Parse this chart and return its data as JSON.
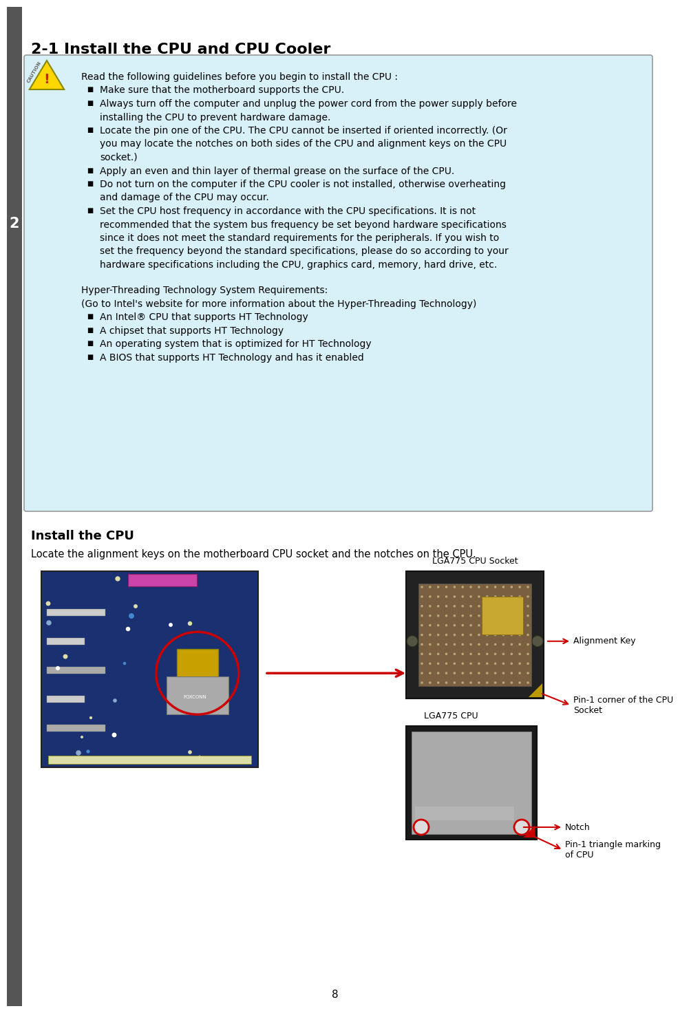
{
  "title": "2-1 Install the CPU and CPU Cooler",
  "page_number": "8",
  "bg_color": "#ffffff",
  "left_bar_color": "#555555",
  "left_bar_number": "2",
  "caution_box_bg": "#d8f0f8",
  "caution_box_border": "#999999",
  "section_title": "Install the CPU",
  "section_subtitle": "Locate the alignment keys on the motherboard CPU socket and the notches on the CPU.",
  "label_lga775_socket": "LGA775 CPU Socket",
  "label_lga775_cpu": "LGA775 CPU",
  "label_alignment_key": "Alignment Key",
  "label_pin1_socket": "Pin-1 corner of the CPU\nSocket",
  "label_notch": "Notch",
  "label_pin1_cpu": "Pin-1 triangle marking\nof CPU",
  "arrow_color": "#cc0000",
  "text_color": "#000000",
  "caution_lines": [
    {
      "indent": 0,
      "bullet": false,
      "text": "Read the following guidelines before you begin to install the CPU :"
    },
    {
      "indent": 1,
      "bullet": true,
      "text": "Make sure that the motherboard supports the CPU."
    },
    {
      "indent": 1,
      "bullet": true,
      "text": "Always turn off the computer and unplug the power cord from the power supply before"
    },
    {
      "indent": 2,
      "bullet": false,
      "text": "installing the CPU to prevent hardware damage."
    },
    {
      "indent": 1,
      "bullet": true,
      "text": "Locate the pin one of the CPU. The CPU cannot be inserted if oriented incorrectly. (Or"
    },
    {
      "indent": 2,
      "bullet": false,
      "text": "you may locate the notches on both sides of the CPU and alignment keys on the CPU"
    },
    {
      "indent": 2,
      "bullet": false,
      "text": "socket.)"
    },
    {
      "indent": 1,
      "bullet": true,
      "text": "Apply an even and thin layer of thermal grease on the surface of the CPU."
    },
    {
      "indent": 1,
      "bullet": true,
      "text": "Do not turn on the computer if the CPU cooler is not installed, otherwise overheating"
    },
    {
      "indent": 2,
      "bullet": false,
      "text": "and damage of the CPU may occur."
    },
    {
      "indent": 1,
      "bullet": true,
      "text": "Set the CPU host frequency in accordance with the CPU specifications. It is not"
    },
    {
      "indent": 2,
      "bullet": false,
      "text": "recommended that the system bus frequency be set beyond hardware specifications"
    },
    {
      "indent": 2,
      "bullet": false,
      "text": "since it does not meet the standard requirements for the peripherals. If you wish to"
    },
    {
      "indent": 2,
      "bullet": false,
      "text": "set the frequency beyond the standard specifications, please do so according to your"
    },
    {
      "indent": 2,
      "bullet": false,
      "text": "hardware specifications including the CPU, graphics card, memory, hard drive, etc."
    },
    {
      "indent": 0,
      "bullet": false,
      "text": ""
    },
    {
      "indent": 0,
      "bullet": false,
      "text": "Hyper-Threading Technology System Requirements:"
    },
    {
      "indent": 0,
      "bullet": false,
      "text": "(Go to Intel's website for more information about the Hyper-Threading Technology)"
    },
    {
      "indent": 1,
      "bullet": true,
      "text": "An Intel® CPU that supports HT Technology"
    },
    {
      "indent": 1,
      "bullet": true,
      "text": "A chipset that supports HT Technology"
    },
    {
      "indent": 1,
      "bullet": true,
      "text": "An operating system that is optimized for HT Technology"
    },
    {
      "indent": 1,
      "bullet": true,
      "text": "A BIOS that supports HT Technology and has it enabled"
    }
  ]
}
